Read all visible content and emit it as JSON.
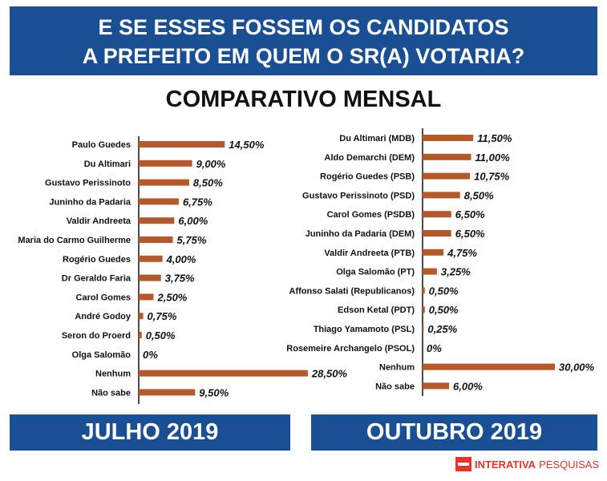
{
  "header": {
    "line1": "E SE ESSES FOSSEM OS CANDIDATOS",
    "line2": "A PREFEITO EM QUEM O SR(A) VOTARIA?",
    "subtitle": "COMPARATIVO MENSAL"
  },
  "chart_data": [
    {
      "type": "bar",
      "orientation": "horizontal",
      "title": "JULHO 2019",
      "categories": [
        "Paulo Guedes",
        "Du Altimari",
        "Gustavo Perissinoto",
        "Juninho da Padaria",
        "Valdir Andreeta",
        "Maria do Carmo Guilherme",
        "Rogério Guedes",
        "Dr Geraldo Faria",
        "Carol Gomes",
        "André Godoy",
        "Seron do Proerd",
        "Olga Salomão",
        "Nenhum",
        "Não sabe"
      ],
      "values": [
        14.5,
        9.0,
        8.5,
        6.75,
        6.0,
        5.75,
        4.0,
        3.75,
        2.5,
        0.75,
        0.5,
        0,
        28.5,
        9.5
      ],
      "value_labels": [
        "14,50%",
        "9,00%",
        "8,50%",
        "6,75%",
        "6,00%",
        "5,75%",
        "4,00%",
        "3,75%",
        "2,50%",
        "0,75%",
        "0,50%",
        "0%",
        "28,50%",
        "9,50%"
      ],
      "unit": "%"
    },
    {
      "type": "bar",
      "orientation": "horizontal",
      "title": "OUTUBRO 2019",
      "categories": [
        "Du Altimari (MDB)",
        "Aldo Demarchi (DEM)",
        "Rogério Guedes (PSB)",
        "Gustavo Perissinoto (PSD)",
        "Carol Gomes (PSDB)",
        "Juninho da Padaria (DEM)",
        "Valdir Andreeta (PTB)",
        "Olga Salomão (PT)",
        "Affonso Salati (Republicanos)",
        "Edson Ketal (PDT)",
        "Thiago Yamamoto (PSL)",
        "Rosemeire Archangelo (PSOL)",
        "Nenhum",
        "Não sabe"
      ],
      "values": [
        11.5,
        11.0,
        10.75,
        8.5,
        6.5,
        6.5,
        4.75,
        3.25,
        0.5,
        0.5,
        0.25,
        0,
        30.0,
        6.0
      ],
      "value_labels": [
        "11,50%",
        "11,00%",
        "10,75%",
        "8,50%",
        "6,50%",
        "6,50%",
        "4,75%",
        "3,25%",
        "0,50%",
        "0,50%",
        "0,25%",
        "0%",
        "30,00%",
        "6,00%"
      ],
      "unit": "%"
    }
  ],
  "footer": {
    "period_left": "JULHO 2019",
    "period_right": "OUTUBRO 2019",
    "brand_name": "INTERATIVA",
    "brand_suffix": "PESQUISAS"
  },
  "colors": {
    "header_bg": "#1b4f93",
    "bar": "#b5582a",
    "brand": "#e63329"
  }
}
